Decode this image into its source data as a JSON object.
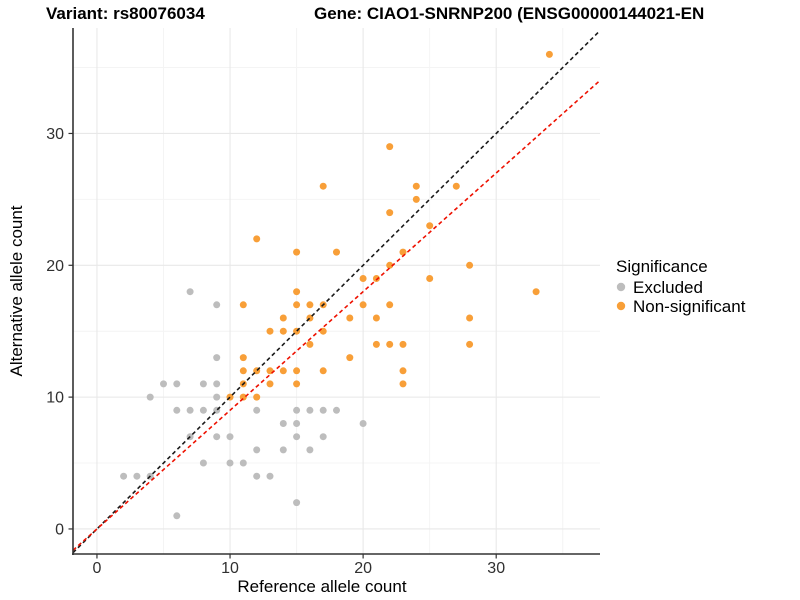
{
  "titles": {
    "variant": "Variant: rs80076034",
    "gene": "Gene: CIAO1-SNRNP200 (ENSG00000144021-EN"
  },
  "chart_data": {
    "type": "scatter",
    "title_left": "Variant: rs80076034",
    "title_right": "Gene: CIAO1-SNRNP200 (ENSG00000144021-EN",
    "xlabel": "Reference allele count",
    "ylabel": "Alternative allele count",
    "xlim": [
      -1.8,
      37.8
    ],
    "ylim": [
      -1.9,
      38.0
    ],
    "xticks": [
      0,
      10,
      20,
      30
    ],
    "yticks": [
      0,
      10,
      20,
      30
    ],
    "minor_gridlines": [
      5,
      15,
      25,
      35
    ],
    "grid": "major+minor",
    "legend": {
      "title": "Significance",
      "position": "right-middle",
      "entries": [
        {
          "label": "Excluded",
          "color": "#BDBDBD"
        },
        {
          "label": "Non-significant",
          "color": "#F89F38"
        }
      ]
    },
    "series": [
      {
        "name": "Excluded",
        "color": "#BDBDBD",
        "points": [
          [
            2,
            4
          ],
          [
            3,
            4
          ],
          [
            4,
            4
          ],
          [
            4,
            10
          ],
          [
            5,
            11
          ],
          [
            6,
            1
          ],
          [
            6,
            9
          ],
          [
            6,
            11
          ],
          [
            7,
            7
          ],
          [
            7,
            9
          ],
          [
            7,
            18
          ],
          [
            8,
            5
          ],
          [
            8,
            9
          ],
          [
            8,
            11
          ],
          [
            9,
            7
          ],
          [
            9,
            9
          ],
          [
            9,
            10
          ],
          [
            9,
            11
          ],
          [
            9,
            13
          ],
          [
            9,
            17
          ],
          [
            10,
            5
          ],
          [
            10,
            7
          ],
          [
            11,
            5
          ],
          [
            12,
            4
          ],
          [
            12,
            6
          ],
          [
            12,
            9
          ],
          [
            13,
            4
          ],
          [
            14,
            6
          ],
          [
            14,
            8
          ],
          [
            15,
            2
          ],
          [
            15,
            7
          ],
          [
            15,
            8
          ],
          [
            15,
            9
          ],
          [
            16,
            6
          ],
          [
            16,
            9
          ],
          [
            17,
            7
          ],
          [
            17,
            9
          ],
          [
            18,
            9
          ],
          [
            20,
            8
          ]
        ]
      },
      {
        "name": "Non-significant",
        "color": "#F89F38",
        "points": [
          [
            10,
            10
          ],
          [
            11,
            10
          ],
          [
            11,
            11
          ],
          [
            11,
            12
          ],
          [
            11,
            13
          ],
          [
            11,
            17
          ],
          [
            12,
            10
          ],
          [
            12,
            12
          ],
          [
            12,
            22
          ],
          [
            13,
            11
          ],
          [
            13,
            12
          ],
          [
            13,
            15
          ],
          [
            14,
            12
          ],
          [
            14,
            15
          ],
          [
            14,
            16
          ],
          [
            15,
            11
          ],
          [
            15,
            12
          ],
          [
            15,
            15
          ],
          [
            15,
            17
          ],
          [
            15,
            18
          ],
          [
            15,
            21
          ],
          [
            16,
            14
          ],
          [
            16,
            16
          ],
          [
            16,
            17
          ],
          [
            17,
            12
          ],
          [
            17,
            15
          ],
          [
            17,
            17
          ],
          [
            17,
            26
          ],
          [
            18,
            21
          ],
          [
            19,
            13
          ],
          [
            19,
            16
          ],
          [
            20,
            17
          ],
          [
            20,
            19
          ],
          [
            21,
            14
          ],
          [
            21,
            16
          ],
          [
            21,
            19
          ],
          [
            22,
            14
          ],
          [
            22,
            17
          ],
          [
            22,
            20
          ],
          [
            22,
            24
          ],
          [
            22,
            29
          ],
          [
            23,
            11
          ],
          [
            23,
            12
          ],
          [
            23,
            14
          ],
          [
            23,
            21
          ],
          [
            24,
            25
          ],
          [
            24,
            26
          ],
          [
            25,
            19
          ],
          [
            25,
            23
          ],
          [
            27,
            26
          ],
          [
            28,
            14
          ],
          [
            28,
            16
          ],
          [
            28,
            20
          ],
          [
            33,
            18
          ],
          [
            34,
            36
          ]
        ]
      }
    ],
    "reference_lines": [
      {
        "name": "identity-line",
        "slope": 1.0,
        "intercept": 0,
        "color": "#1A1A1A",
        "style": "dashed"
      },
      {
        "name": "ratio-line",
        "slope": 0.9,
        "intercept": 0,
        "color": "#EE1100",
        "style": "dashed"
      }
    ]
  },
  "colors": {
    "excluded": "#BDBDBD",
    "non_significant": "#F89F38",
    "identity_line": "#1A1A1A",
    "ratio_line": "#EE1100",
    "grid_major": "#E8E8E8",
    "grid_minor": "#F4F4F4",
    "axis": "#333333"
  }
}
